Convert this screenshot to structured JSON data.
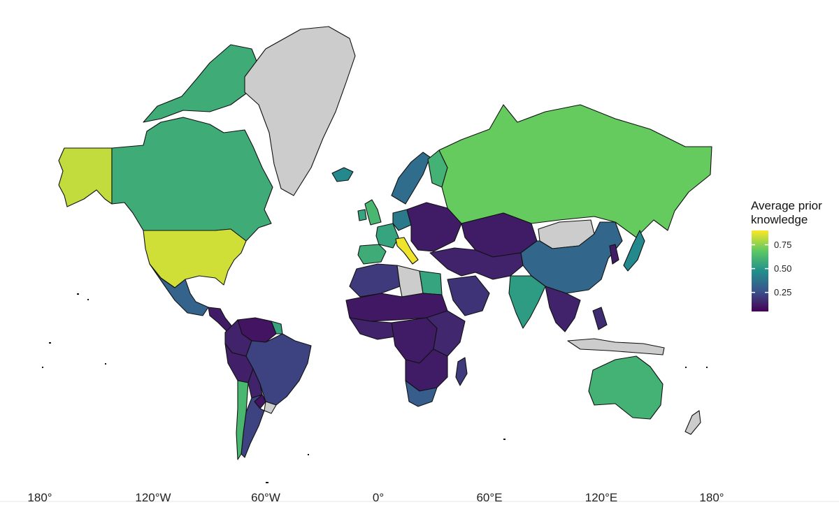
{
  "legend": {
    "title_line1": "Average prior",
    "title_line2": "knowledge",
    "ticks": [
      {
        "label": "0.75",
        "value": 0.75
      },
      {
        "label": "0.50",
        "value": 0.5
      },
      {
        "label": "0.25",
        "value": 0.25
      }
    ],
    "range": [
      0.05,
      0.9
    ],
    "colors": [
      "#440154",
      "#3b528b",
      "#21908c",
      "#5dc963",
      "#fde725"
    ]
  },
  "axis": {
    "x_labels": [
      "180°",
      "120°W",
      "60°W",
      "0°",
      "60°E",
      "120°E",
      "180°"
    ],
    "x_values": [
      -180,
      -120,
      -60,
      0,
      60,
      120,
      180
    ]
  },
  "no_data_color": "#cccccc",
  "regions": [
    {
      "name": "Alaska",
      "value": 0.82
    },
    {
      "name": "Canada",
      "value": 0.58
    },
    {
      "name": "Greenland",
      "value": null
    },
    {
      "name": "United States",
      "value": 0.84
    },
    {
      "name": "Mexico",
      "value": 0.32
    },
    {
      "name": "Central America",
      "value": 0.12
    },
    {
      "name": "Venezuela",
      "value": 0.1
    },
    {
      "name": "Colombia",
      "value": 0.14
    },
    {
      "name": "Guyana",
      "value": 0.55
    },
    {
      "name": "Brazil",
      "value": 0.22
    },
    {
      "name": "Peru",
      "value": 0.13
    },
    {
      "name": "Bolivia",
      "value": 0.14
    },
    {
      "name": "Paraguay",
      "value": 0.1
    },
    {
      "name": "Uruguay",
      "value": null
    },
    {
      "name": "Argentina",
      "value": 0.22
    },
    {
      "name": "Chile",
      "value": 0.62
    },
    {
      "name": "Iceland",
      "value": 0.45
    },
    {
      "name": "United Kingdom",
      "value": 0.62
    },
    {
      "name": "Ireland",
      "value": 0.55
    },
    {
      "name": "Spain",
      "value": 0.58
    },
    {
      "name": "France",
      "value": 0.55
    },
    {
      "name": "Italy",
      "value": 0.88
    },
    {
      "name": "Germany",
      "value": 0.4
    },
    {
      "name": "Eastern Europe",
      "value": 0.12
    },
    {
      "name": "Scandinavia",
      "value": 0.35
    },
    {
      "name": "Finland",
      "value": 0.6
    },
    {
      "name": "Russia",
      "value": 0.7
    },
    {
      "name": "Kazakhstan",
      "value": 0.12
    },
    {
      "name": "Mongolia",
      "value": null
    },
    {
      "name": "China",
      "value": 0.33
    },
    {
      "name": "Japan",
      "value": 0.45
    },
    {
      "name": "Korea",
      "value": 0.12
    },
    {
      "name": "Middle East",
      "value": 0.14
    },
    {
      "name": "Saudi Arabia",
      "value": 0.18
    },
    {
      "name": "India",
      "value": 0.52
    },
    {
      "name": "Southeast Asia",
      "value": 0.14
    },
    {
      "name": "Indonesia",
      "value": null
    },
    {
      "name": "Philippines",
      "value": 0.16
    },
    {
      "name": "Australia",
      "value": 0.6
    },
    {
      "name": "New Zealand",
      "value": null
    },
    {
      "name": "North Africa West",
      "value": 0.2
    },
    {
      "name": "Libya",
      "value": null
    },
    {
      "name": "Egypt",
      "value": 0.55
    },
    {
      "name": "Sahel",
      "value": 0.11
    },
    {
      "name": "West Africa",
      "value": 0.14
    },
    {
      "name": "Central Africa",
      "value": 0.12
    },
    {
      "name": "East Africa",
      "value": 0.15
    },
    {
      "name": "Southern Africa",
      "value": 0.12
    },
    {
      "name": "South Africa",
      "value": 0.3
    },
    {
      "name": "Madagascar",
      "value": 0.2
    }
  ]
}
